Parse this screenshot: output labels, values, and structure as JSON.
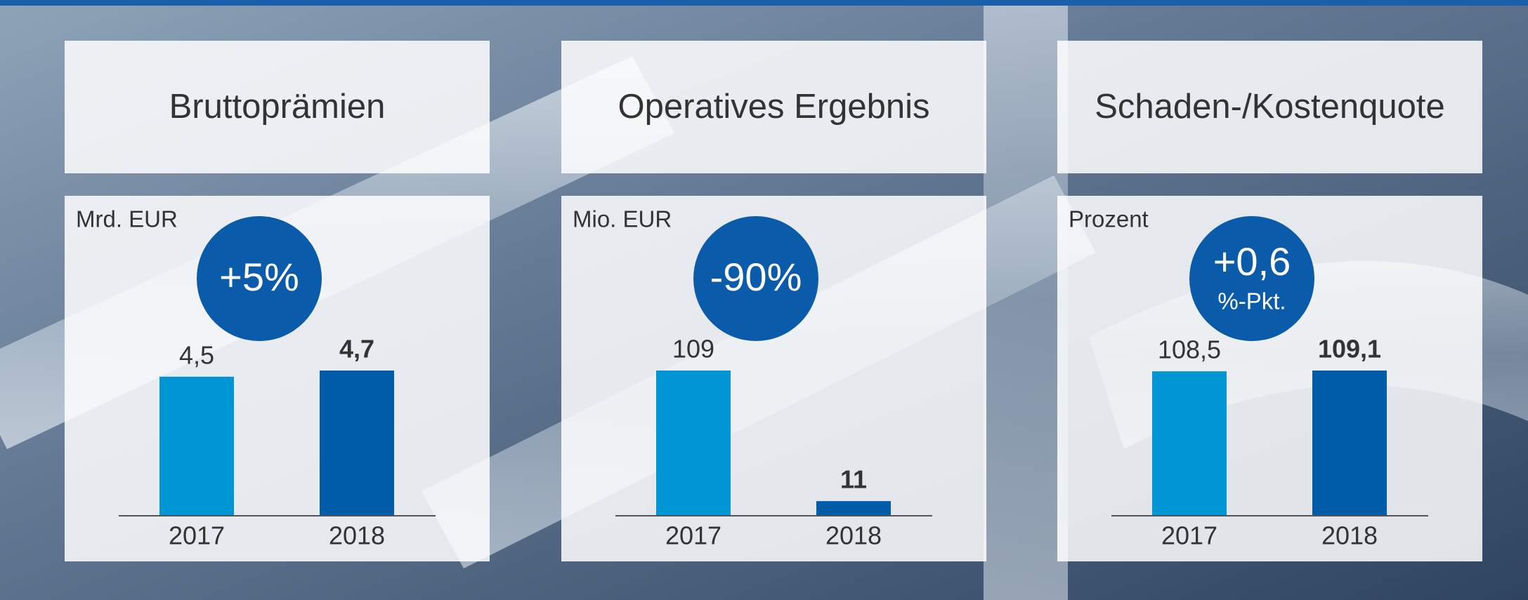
{
  "chart_data": [
    {
      "type": "bar",
      "title": "Bruttoprämien",
      "unit_label": "Mrd. EUR",
      "badge": {
        "text": "+5%"
      },
      "categories": [
        "2017",
        "2018"
      ],
      "values": [
        4.5,
        4.7
      ],
      "value_labels": [
        "4,5",
        "4,7"
      ],
      "colors": [
        "#0096d6",
        "#005ca9"
      ]
    },
    {
      "type": "bar",
      "title": "Operatives Ergebnis",
      "unit_label": "Mio. EUR",
      "badge": {
        "text": "-90%"
      },
      "categories": [
        "2017",
        "2018"
      ],
      "values": [
        109,
        11
      ],
      "value_labels": [
        "109",
        "11"
      ],
      "colors": [
        "#0096d6",
        "#005ca9"
      ]
    },
    {
      "type": "bar",
      "title": "Schaden-/Kostenquote",
      "unit_label": "Prozent",
      "badge": {
        "text": "+0,6",
        "subtext": "%-Pkt."
      },
      "categories": [
        "2017",
        "2018"
      ],
      "values": [
        108.5,
        109.1
      ],
      "value_labels": [
        "108,5",
        "109,1"
      ],
      "colors": [
        "#0096d6",
        "#005ca9"
      ]
    }
  ]
}
